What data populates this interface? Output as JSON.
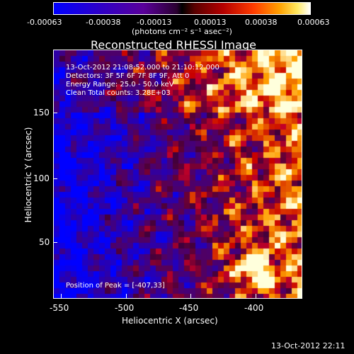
{
  "colorbar": {
    "ticks": [
      "-0.00063",
      "-0.00038",
      "-0.00013",
      "0.00013",
      "0.00038",
      "0.00063"
    ],
    "units": "(photons cm⁻² s⁻¹ asec⁻²)"
  },
  "plot": {
    "title": "Reconstructed RHESSI Image",
    "info_lines": [
      "13-Oct-2012 21:08:52.000 to 21:10:12.000",
      "Detectors: 3F 5F 6F 7F 8F 9F, Att 0",
      "Energy Range: 25.0 - 50.0 keV",
      "Clean     Total counts: 3.28E+03"
    ],
    "peak_label": "Position of Peak = [-407,33]",
    "x_axis_label": "Heliocentric X (arcsec)",
    "y_axis_label": "Heliocentric Y (arcsec)",
    "x_ticks": [
      "-550",
      "-500",
      "-450",
      "-400"
    ],
    "y_ticks": [
      "150",
      "100",
      "50"
    ]
  },
  "footer": {
    "timestamp": "13-Oct-2012 22:11"
  },
  "colors": {
    "background": "#000000",
    "foreground": "#ffffff"
  }
}
